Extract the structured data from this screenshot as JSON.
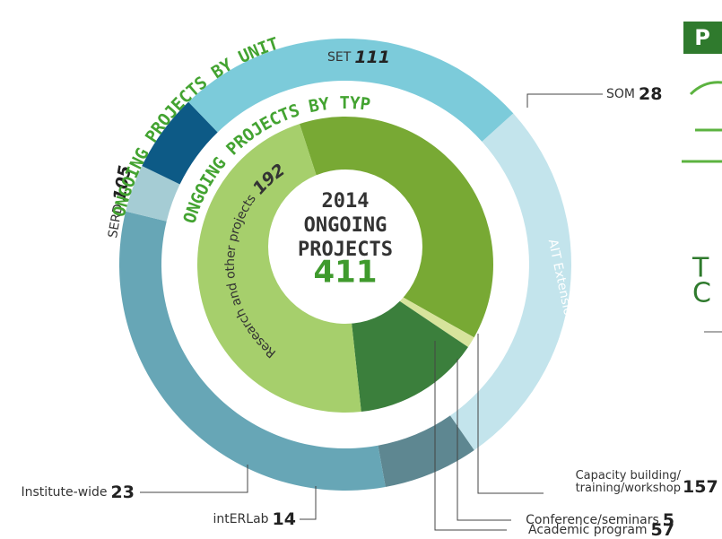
{
  "chart_data": [
    {
      "type": "donut",
      "title": "ONGOING PROJECTS BY UNIT",
      "categories": [
        "SET",
        "SOM",
        "AIT Extension",
        "intERLab",
        "Institute-wide",
        "SERD"
      ],
      "values": [
        111,
        28,
        130,
        14,
        23,
        105
      ],
      "colors": [
        "#c3e4ec",
        "#5e8791",
        "#67a6b6",
        "#a5ccd4",
        "#0d5a86",
        "#7ccbda"
      ]
    },
    {
      "type": "pie",
      "title": "ONGOING PROJECTS BY TYPE",
      "categories": [
        "Capacity building/\ntraining/workshop",
        "Conference/seminars",
        "Academic program",
        "Research and other projects"
      ],
      "values": [
        157,
        5,
        57,
        192
      ],
      "colors": [
        "#78a934",
        "#d7e49c",
        "#3b7f3c",
        "#a6cf6c"
      ],
      "center_title": [
        "2014",
        "ONGOING",
        "PROJECTS"
      ],
      "total": 411
    }
  ],
  "side_text": [
    "P",
    "T",
    "C"
  ]
}
